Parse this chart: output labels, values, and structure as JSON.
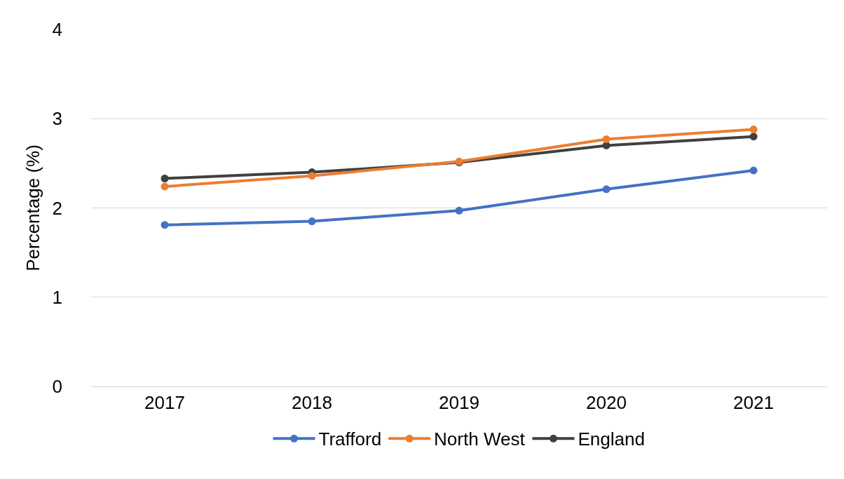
{
  "chart_data": {
    "type": "line",
    "ylabel": "Percentage (%)",
    "categories": [
      "2017",
      "2018",
      "2019",
      "2020",
      "2021"
    ],
    "series": [
      {
        "name": "Trafford",
        "color": "#4472c4",
        "values": [
          1.81,
          1.85,
          1.97,
          2.21,
          2.42
        ]
      },
      {
        "name": "North West",
        "color": "#ed7d31",
        "values": [
          2.24,
          2.36,
          2.52,
          2.77,
          2.88
        ]
      },
      {
        "name": "England",
        "color": "#404040",
        "values": [
          2.33,
          2.4,
          2.51,
          2.7,
          2.8
        ]
      }
    ],
    "ylim": [
      0,
      4
    ],
    "yticks": [
      0,
      1,
      2,
      3,
      4
    ],
    "grid": "y",
    "legend": "bottom",
    "marker": "circle",
    "line_style": "solid"
  }
}
